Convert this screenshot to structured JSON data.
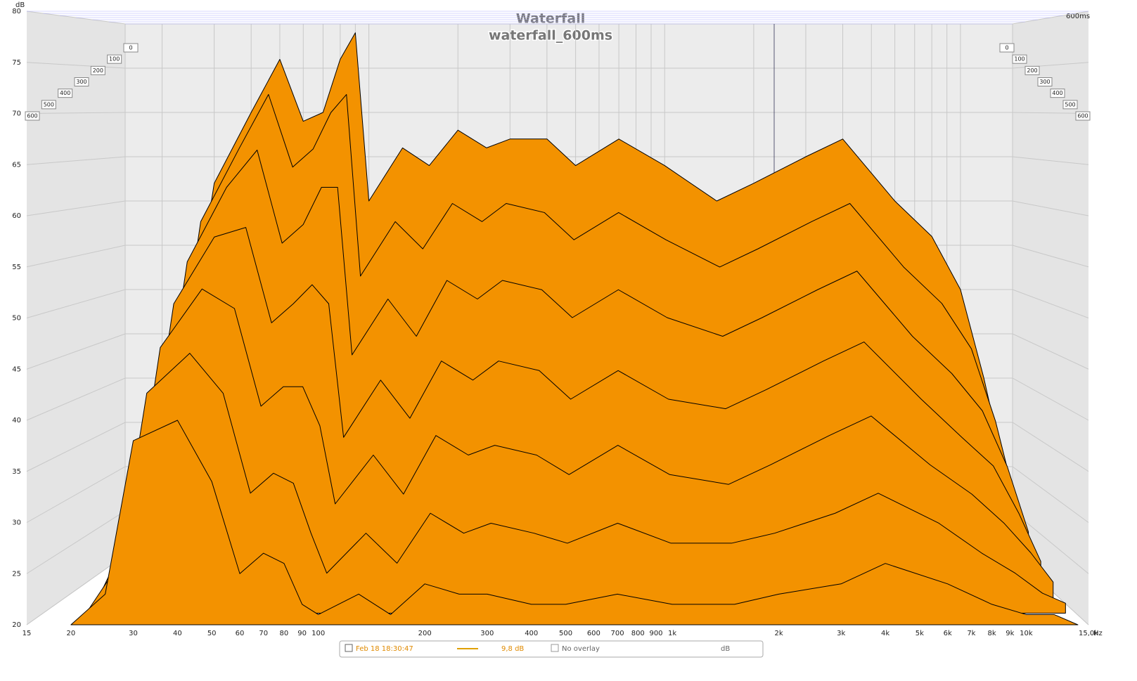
{
  "chart_data": {
    "type": "waterfall",
    "title": "Waterfall",
    "subtitle": "waterfall_600ms",
    "y_unit": "dB",
    "x_unit": "Hz",
    "time_label": "600ms",
    "xscale": "log",
    "xlim": [
      15,
      15000
    ],
    "ylim": [
      20,
      80
    ],
    "tlim": [
      0,
      600
    ],
    "yticks": [
      20,
      25,
      30,
      35,
      40,
      45,
      50,
      55,
      60,
      65,
      70,
      75,
      80
    ],
    "xticks": [
      15,
      20,
      30,
      40,
      50,
      60,
      70,
      80,
      90,
      100,
      200,
      300,
      400,
      500,
      600,
      700,
      800,
      900,
      {
        "value": 1000,
        "label": "1k"
      },
      {
        "value": 2000,
        "label": "2k"
      },
      {
        "value": 3000,
        "label": "3k"
      },
      {
        "value": 4000,
        "label": "4k"
      },
      {
        "value": 5000,
        "label": "5k"
      },
      {
        "value": 6000,
        "label": "6k"
      },
      {
        "value": 7000,
        "label": "7k"
      },
      {
        "value": 8000,
        "label": "8k"
      },
      {
        "value": 9000,
        "label": "9k"
      },
      {
        "value": 10000,
        "label": "10k"
      },
      {
        "value": 15000,
        "label": "15,0k"
      }
    ],
    "tticks": [
      0,
      100,
      200,
      300,
      400,
      500,
      600
    ],
    "grid": true,
    "color": "#f39200",
    "x": [
      20,
      25,
      30,
      40,
      50,
      60,
      70,
      80,
      90,
      100,
      130,
      160,
      200,
      250,
      300,
      400,
      500,
      700,
      1000,
      1500,
      2000,
      3000,
      4000,
      6000,
      8000,
      10000,
      12000,
      14000
    ],
    "slices": [
      {
        "time": 0,
        "values": [
          28,
          45,
          62,
          70,
          76,
          69,
          70,
          76,
          79,
          60,
          66,
          64,
          68,
          66,
          67,
          67,
          64,
          67,
          64,
          60,
          62,
          65,
          67,
          60,
          56,
          50,
          40,
          30
        ]
      },
      {
        "time": 100,
        "values": [
          26,
          40,
          58,
          66,
          72,
          64,
          66,
          70,
          72,
          52,
          58,
          55,
          60,
          58,
          60,
          59,
          56,
          59,
          56,
          53,
          55,
          58,
          60,
          53,
          49,
          44,
          36,
          27
        ]
      },
      {
        "time": 200,
        "values": [
          24,
          36,
          54,
          62,
          66,
          56,
          58,
          62,
          62,
          44,
          50,
          46,
          52,
          50,
          52,
          51,
          48,
          51,
          48,
          46,
          48,
          51,
          53,
          46,
          42,
          38,
          32,
          25
        ]
      },
      {
        "time": 300,
        "values": [
          22,
          32,
          50,
          57,
          58,
          48,
          50,
          52,
          50,
          36,
          42,
          38,
          44,
          42,
          44,
          43,
          40,
          43,
          40,
          39,
          41,
          44,
          46,
          40,
          36,
          33,
          28,
          23
        ]
      },
      {
        "time": 400,
        "values": [
          21,
          28,
          46,
          52,
          50,
          40,
          42,
          42,
          38,
          30,
          35,
          31,
          37,
          35,
          36,
          35,
          33,
          36,
          33,
          32,
          34,
          37,
          39,
          34,
          31,
          28,
          25,
          22
        ]
      },
      {
        "time": 500,
        "values": [
          20,
          25,
          42,
          46,
          42,
          32,
          34,
          33,
          28,
          24,
          28,
          25,
          30,
          28,
          29,
          28,
          27,
          29,
          27,
          27,
          28,
          30,
          32,
          29,
          26,
          24,
          22,
          21
        ]
      },
      {
        "time": 600,
        "values": [
          20,
          23,
          38,
          40,
          34,
          25,
          27,
          26,
          22,
          21,
          23,
          21,
          24,
          23,
          23,
          22,
          22,
          23,
          22,
          22,
          23,
          24,
          26,
          24,
          22,
          21,
          21,
          20
        ]
      }
    ],
    "legend": {
      "date": "Feb 18 18:30:47",
      "level": "9,8 dB",
      "overlay": "No overlay",
      "unit": "dB"
    }
  }
}
